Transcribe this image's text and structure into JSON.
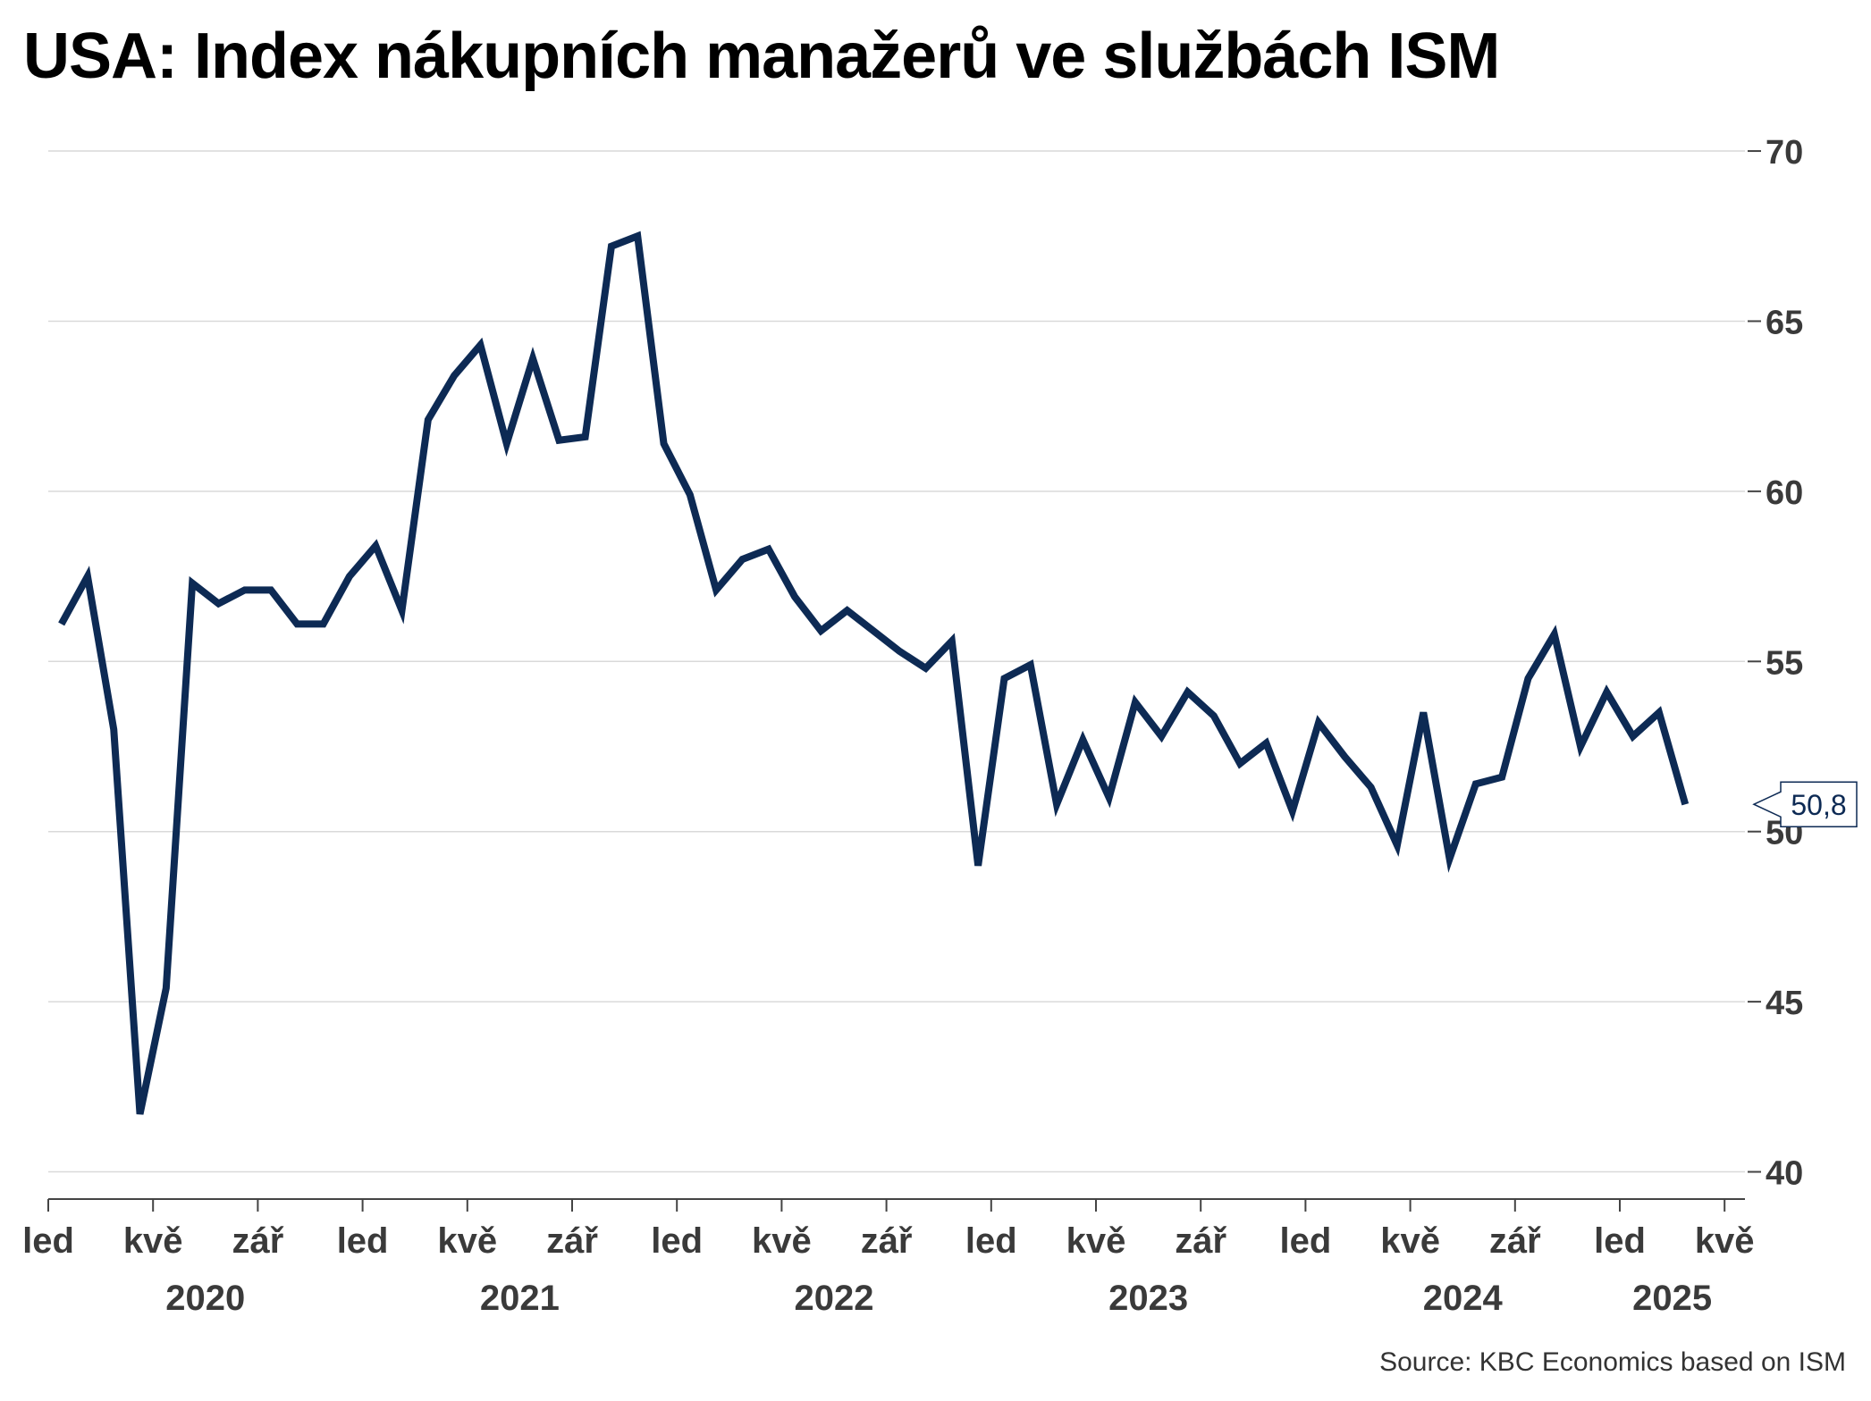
{
  "title": "USA: Index nákupních manažerů ve službách ISM",
  "source": "Source: KBC Economics based on ISM",
  "chart_data": {
    "type": "line",
    "ylim": [
      39.2,
      70.5
    ],
    "yticks": [
      40,
      45,
      50,
      55,
      60,
      65,
      70
    ],
    "grid": true,
    "x_tick_labels": [
      "led",
      "kvě",
      "zář",
      "led",
      "kvě",
      "zář",
      "led",
      "kvě",
      "zář",
      "led",
      "kvě",
      "zář",
      "led",
      "kvě",
      "zář",
      "led",
      "kvě"
    ],
    "year_labels": [
      "2020",
      "2021",
      "2022",
      "2023",
      "2024",
      "2025"
    ],
    "series": [
      {
        "color": "#0d2a54",
        "x": [
          "2020-01",
          "2020-02",
          "2020-03",
          "2020-04",
          "2020-05",
          "2020-06",
          "2020-07",
          "2020-08",
          "2020-09",
          "2020-10",
          "2020-11",
          "2020-12",
          "2021-01",
          "2021-02",
          "2021-03",
          "2021-04",
          "2021-05",
          "2021-06",
          "2021-07",
          "2021-08",
          "2021-09",
          "2021-10",
          "2021-11",
          "2021-12",
          "2022-01",
          "2022-02",
          "2022-03",
          "2022-04",
          "2022-05",
          "2022-06",
          "2022-07",
          "2022-08",
          "2022-09",
          "2022-10",
          "2022-11",
          "2022-12",
          "2023-01",
          "2023-02",
          "2023-03",
          "2023-04",
          "2023-05",
          "2023-06",
          "2023-07",
          "2023-08",
          "2023-09",
          "2023-10",
          "2023-11",
          "2023-12",
          "2024-01",
          "2024-02",
          "2024-03",
          "2024-04",
          "2024-05",
          "2024-06",
          "2024-07",
          "2024-08",
          "2024-09",
          "2024-10",
          "2024-11",
          "2024-12",
          "2025-01",
          "2025-02",
          "2025-03"
        ],
        "values": [
          56.1,
          57.5,
          53.0,
          41.7,
          45.4,
          57.3,
          56.7,
          57.1,
          57.1,
          56.1,
          56.1,
          57.5,
          58.4,
          56.5,
          62.1,
          63.4,
          64.3,
          61.4,
          63.9,
          61.5,
          61.6,
          67.2,
          67.5,
          61.4,
          59.9,
          57.1,
          58.0,
          58.3,
          56.9,
          55.9,
          56.5,
          55.9,
          55.3,
          54.8,
          55.6,
          49.0,
          54.5,
          54.9,
          50.8,
          52.7,
          51.0,
          53.8,
          52.8,
          54.1,
          53.4,
          52.0,
          52.6,
          50.6,
          53.2,
          52.2,
          51.3,
          49.6,
          53.5,
          49.2,
          51.4,
          51.6,
          54.5,
          55.8,
          52.5,
          54.1,
          52.8,
          53.5,
          50.8
        ],
        "last_label": "50,8"
      }
    ]
  }
}
